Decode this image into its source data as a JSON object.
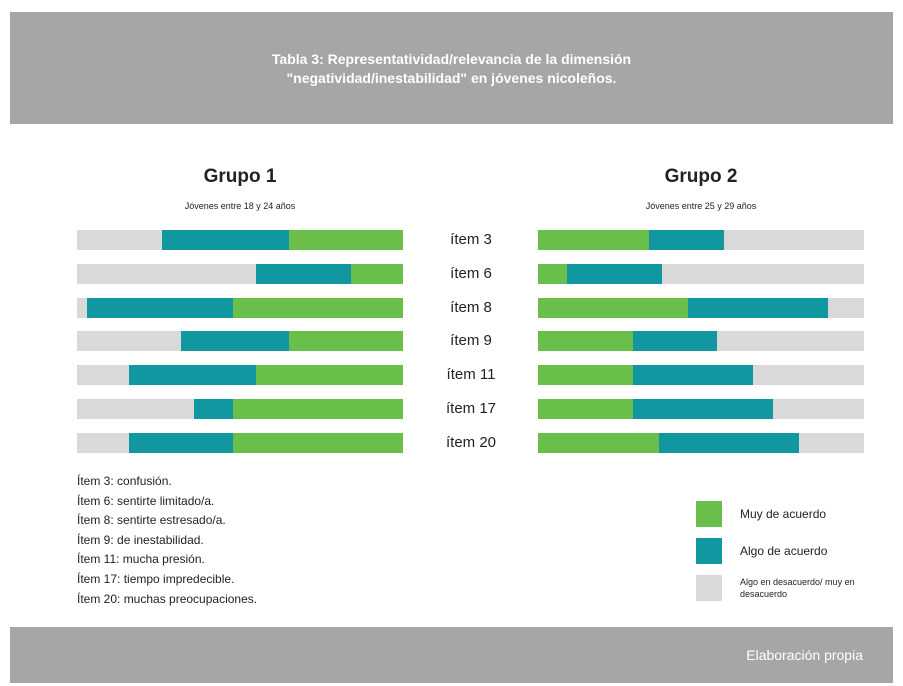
{
  "chart_data": {
    "type": "bar",
    "title": "Tabla 3: Representatividad/relevancia de la dimensión\n\"negatividad/inestabilidad\" en jóvenes nicoleños.",
    "categories": [
      "ítem 3",
      "ítem 6",
      "ítem 8",
      "ítem 9",
      "ítem 11",
      "ítem 17",
      "ítem 20"
    ],
    "xlim": [
      0,
      100
    ],
    "series": [
      {
        "name": "Muy de acuerdo",
        "color": "#6abf4b"
      },
      {
        "name": "Algo de acuerdo",
        "color": "#10979f"
      },
      {
        "name": "Algo en desacuerdo/ muy en desacuerdo",
        "color": "#d9d9d9"
      }
    ],
    "groups": [
      {
        "title": "Grupo 1",
        "subtitle": "Jóvenes entre 18 y 24 años",
        "direction": "right-to-left",
        "values": [
          [
            35,
            16,
            52,
            35,
            45,
            52,
            52
          ],
          [
            39,
            29,
            45,
            33,
            39,
            12,
            32
          ],
          [
            26,
            55,
            3,
            32,
            16,
            36,
            16
          ]
        ]
      },
      {
        "title": "Grupo 2",
        "subtitle": "Jóvenes entre 25 y 29 años",
        "direction": "left-to-right",
        "values": [
          [
            34,
            9,
            46,
            29,
            29,
            29,
            37
          ],
          [
            23,
            29,
            43,
            26,
            37,
            43,
            43
          ],
          [
            43,
            62,
            11,
            45,
            34,
            28,
            20
          ]
        ]
      }
    ]
  },
  "notes": [
    "Ítem 3: confusión.",
    "Ítem 6: sentirte limitado/a.",
    "Ítem 8: sentirte estresado/a.",
    "Ítem 9: de inestabilidad.",
    "Ítem 11: mucha presión.",
    "Ítem 17: tiempo impredecible.",
    "Ítem 20: muchas preocupaciones."
  ],
  "footer": "Elaboración propia"
}
